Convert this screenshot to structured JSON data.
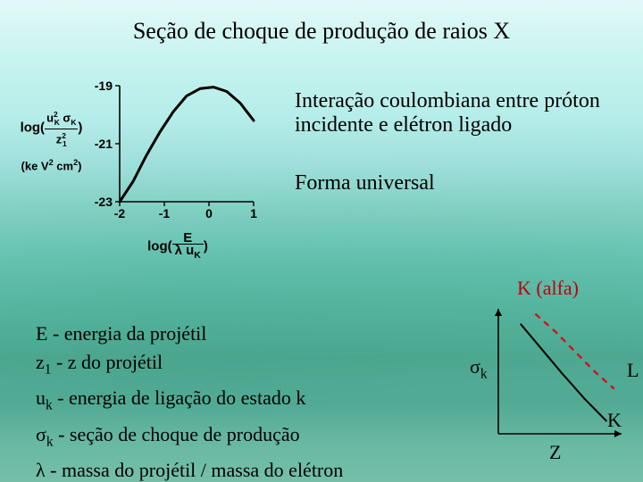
{
  "title": "Seção de choque de produção de raios X",
  "annotations": {
    "line1": "Interação coulombiana entre próton incidente e elétron ligado",
    "line2": "Forma universal"
  },
  "k_alfa": "K (alfa)",
  "defs": {
    "d1_pre": "E - energia da projétil",
    "d2_pre": "z",
    "d2_sub": "1",
    "d2_post": " - z do projétil",
    "d3_pre": "u",
    "d3_sub": "k",
    "d3_post": " - energia de ligação do estado k",
    "d4_pre": "σ",
    "d4_sub": "k",
    "d4_post": " - seção de choque de produção",
    "d5_pre": "λ - massa do projétil / massa do elétron"
  },
  "chart1": {
    "type": "line",
    "xlabel_top": "log(",
    "xlabel_mid_num": "E",
    "xlabel_mid_den_a": "λ",
    "xlabel_mid_den_b": " u",
    "xlabel_mid_den_sub": "K",
    "xlabel_tail": ")",
    "ylabel_top": "log(",
    "yl_num_a": "u",
    "yl_num_a_sup": "2",
    "yl_num_a_sub": "K",
    "yl_num_b": " σ",
    "yl_num_b_sub": "K",
    "yl_den_a": "z",
    "yl_den_a_sup": "2",
    "yl_den_a_sub": "1",
    "ylabel_tail": ")",
    "ylabel_units_a": "(ke V",
    "ylabel_units_a_sup": "2",
    "ylabel_units_b": " cm",
    "ylabel_units_b_sup": "2",
    "ylabel_units_tail": ")",
    "axis_color": "#000000",
    "curve_color": "#000000",
    "line_width": 3.0,
    "xlim": [
      -2,
      1
    ],
    "ylim": [
      -23,
      -19
    ],
    "xticks": [
      -2,
      -1,
      0,
      1
    ],
    "yticks": [
      -19,
      -21,
      -23
    ],
    "tick_fontsize": 14,
    "tick_fontfamily": "Arial",
    "tick_fontweight": "bold",
    "curve_x": [
      -2.0,
      -1.7,
      -1.4,
      -1.1,
      -0.8,
      -0.5,
      -0.2,
      0.1,
      0.4,
      0.7,
      1.0
    ],
    "curve_y": [
      -23.0,
      -22.3,
      -21.4,
      -20.6,
      -19.9,
      -19.35,
      -19.1,
      -19.05,
      -19.2,
      -19.6,
      -20.2
    ]
  },
  "chart2": {
    "type": "line",
    "ylabel": "σ",
    "ylabel_sub": "k",
    "xlabel": "Z",
    "label_K": "K",
    "label_L": "L",
    "axis_color": "#000000",
    "line_width": 1.6,
    "K_color": "#000000",
    "L_color": "#d01020",
    "L_dash": "7,6",
    "xlim": [
      0,
      1
    ],
    "ylim": [
      0,
      1
    ],
    "K_x": [
      0.18,
      0.35,
      0.52,
      0.7,
      0.88
    ],
    "K_y": [
      0.88,
      0.68,
      0.48,
      0.28,
      0.1
    ],
    "L_x": [
      0.3,
      0.46,
      0.62,
      0.78,
      0.94
    ],
    "L_y": [
      0.96,
      0.82,
      0.66,
      0.5,
      0.36
    ]
  }
}
